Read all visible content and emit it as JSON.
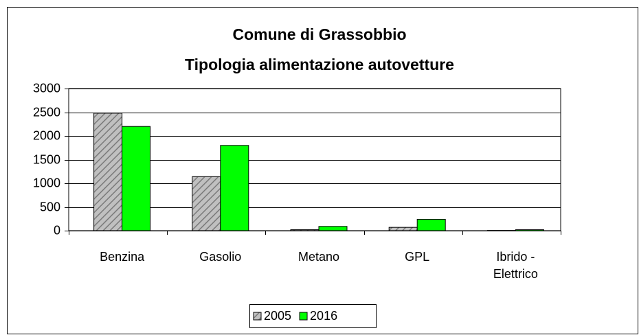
{
  "chart_data": {
    "type": "bar",
    "title": "Comune di Grassobbio",
    "subtitle": "Tipologia alimentazione autovetture",
    "categories": [
      "Benzina",
      "Gasolio",
      "Metano",
      "GPL",
      "Ibrido - Elettrico"
    ],
    "series": [
      {
        "name": "2005",
        "color": "#c0c0c0",
        "values": [
          2480,
          1140,
          20,
          70,
          5
        ]
      },
      {
        "name": "2016",
        "color": "#00ff00",
        "values": [
          2200,
          1800,
          90,
          240,
          20
        ]
      }
    ],
    "ylim": [
      0,
      3000
    ],
    "yticks": [
      0,
      500,
      1000,
      1500,
      2000,
      2500,
      3000
    ],
    "grid": true,
    "legend": "bottom"
  }
}
